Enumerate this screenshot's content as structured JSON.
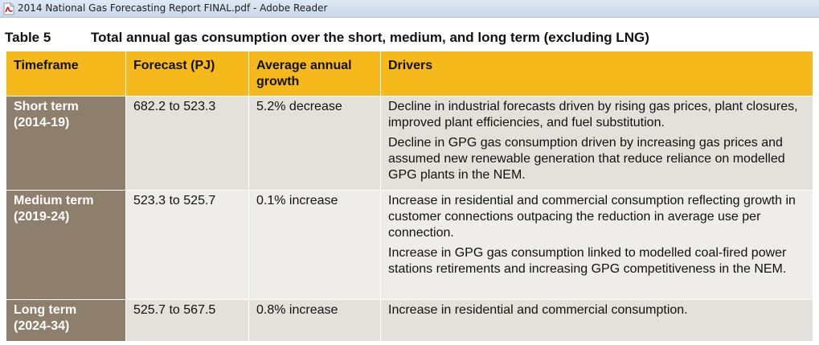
{
  "window": {
    "title": "2014 National Gas Forecasting Report FINAL.pdf - Adobe Reader",
    "icon": "pdf-file-icon"
  },
  "document": {
    "table_number": "Table 5",
    "table_title": "Total annual gas consumption over the short, medium, and long term (excluding LNG)",
    "headers": {
      "timeframe": "Timeframe",
      "forecast": "Forecast (PJ)",
      "growth": "Average annual growth",
      "drivers": "Drivers"
    },
    "rows": [
      {
        "term": "Short term",
        "period": "(2014-19)",
        "forecast": "682.2 to 523.3",
        "growth": "5.2% decrease",
        "drivers": [
          "Decline in industrial forecasts driven by rising gas prices, plant closures, improved plant efficiencies, and fuel substitution.",
          "Decline in GPG gas consumption driven by increasing gas prices and assumed new renewable generation that reduce reliance on modelled GPG plants in the NEM."
        ]
      },
      {
        "term": "Medium term",
        "period": "(2019-24)",
        "forecast": "523.3 to 525.7",
        "growth": "0.1% increase",
        "drivers": [
          "Increase in residential and commercial consumption reflecting growth in customer connections outpacing the reduction in average use per connection.",
          "Increase in GPG gas consumption linked to modelled coal-fired power stations retirements and increasing GPG competitiveness in the NEM."
        ]
      },
      {
        "term": "Long term",
        "period": "(2024-34)",
        "forecast": "525.7 to 567.5",
        "growth": "0.8% increase",
        "drivers": [
          "Increase in residential and commercial consumption."
        ]
      }
    ]
  },
  "colors": {
    "header": "#f5b91b",
    "timeframe_cell": "#8e7f6c",
    "body_cell": "#e4e1dc"
  }
}
